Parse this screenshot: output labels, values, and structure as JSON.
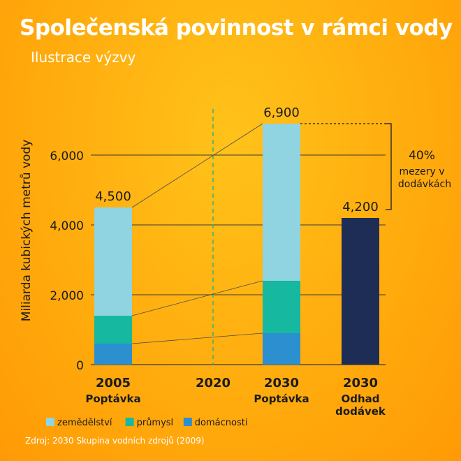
{
  "title": "Společenská povinnost v rámci vody",
  "subtitle": "Ilustrace výzvy",
  "source": "Zdroj: 2030 Skupina vodních zdrojů (2009)",
  "colors": {
    "zemedelstvi": "#8fd4e0",
    "prumysl": "#17b8a0",
    "domacnosti": "#2b8fd0",
    "supply": "#1e2d55",
    "text": "#1b1b1b",
    "grid": "#3a3a3a",
    "dashed": "#3cb371"
  },
  "chart_data": {
    "type": "bar",
    "ylabel": "Miliarda kubických metrů vody",
    "ylim": [
      0,
      7000
    ],
    "yticks": [
      {
        "value": 0,
        "label": "0"
      },
      {
        "value": 2000,
        "label": "2,000"
      },
      {
        "value": 4000,
        "label": "4,000"
      },
      {
        "value": 6000,
        "label": "6,000"
      }
    ],
    "categories": [
      {
        "year": "2005",
        "sub": [
          "Poptávka"
        ]
      },
      {
        "year": "2020",
        "sub": []
      },
      {
        "year": "2030",
        "sub": [
          "Poptávka"
        ]
      },
      {
        "year": "2030",
        "sub": [
          "Odhad",
          "dodávek"
        ]
      }
    ],
    "series": [
      {
        "name": "domácnosti",
        "color_key": "domacnosti",
        "values": [
          600,
          null,
          900,
          null
        ]
      },
      {
        "name": "průmysl",
        "color_key": "prumysl",
        "values": [
          800,
          null,
          1500,
          null
        ]
      },
      {
        "name": "zemědělství",
        "color_key": "zemedelstvi",
        "values": [
          3100,
          null,
          4500,
          null
        ]
      },
      {
        "name": "dodávky",
        "color_key": "supply",
        "values": [
          null,
          null,
          null,
          4200
        ]
      }
    ],
    "totals": [
      {
        "label": "4,500",
        "value": 4500,
        "category": 0
      },
      {
        "label": "6,900",
        "value": 6900,
        "category": 2
      },
      {
        "label": "4,200",
        "value": 4200,
        "category": 3
      }
    ],
    "legend": [
      {
        "label": "zemědělství",
        "color_key": "zemedelstvi"
      },
      {
        "label": "průmysl",
        "color_key": "prumysl"
      },
      {
        "label": "domácnosti",
        "color_key": "domacnosti"
      }
    ],
    "legend_position": "bottom-left",
    "gap": {
      "percent": "40%",
      "lines": [
        "mezery v",
        "dodávkách"
      ]
    }
  }
}
